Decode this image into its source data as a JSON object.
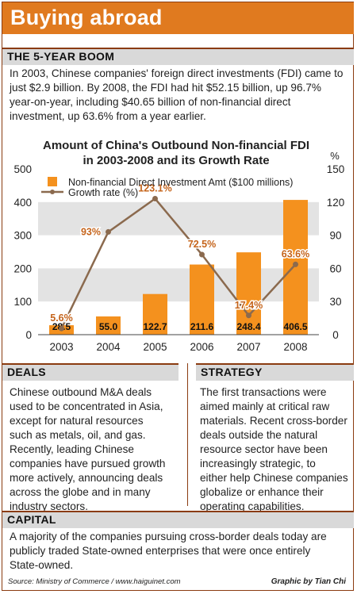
{
  "title": "Buying abroad",
  "boom": {
    "heading": "THE 5-YEAR BOOM",
    "lines": [
      "In 2003, Chinese companies' foreign direct investments (FDI) came to",
      "just $2.9 billion. By 2008, the FDI had hit $52.15 billion, up 96.7%",
      "year-on-year, including $40.65 billion of non-financial direct",
      "investment, up 63.6% from a year earlier."
    ]
  },
  "chart_data": {
    "type": "bar",
    "title_lines": [
      "Amount of China's Outbound Non-financial FDI",
      "in 2003-2008 and its Growth Rate"
    ],
    "categories": [
      "2003",
      "2004",
      "2005",
      "2006",
      "2007",
      "2008"
    ],
    "series": [
      {
        "name": "Non-financial Direct Investment Amt ($100 millions)",
        "type": "bar",
        "axis": "left",
        "values": [
          28.5,
          55.0,
          122.7,
          211.6,
          248.4,
          406.5
        ],
        "labels": [
          "28.5",
          "55.0",
          "122.7",
          "211.6",
          "248.4",
          "406.5"
        ]
      },
      {
        "name": "Growth rate (%)",
        "type": "line",
        "axis": "right",
        "values": [
          5.6,
          93,
          123.1,
          72.5,
          17.4,
          63.6
        ],
        "labels": [
          "5.6%",
          "93%",
          "123.1%",
          "72.5%",
          "17.4%",
          "63.6%"
        ]
      }
    ],
    "y_left": {
      "min": 0,
      "max": 500,
      "ticks": [
        0,
        100,
        200,
        300,
        400,
        500
      ]
    },
    "y_right": {
      "min": 0,
      "max": 150,
      "ticks": [
        0,
        30,
        60,
        90,
        120,
        150
      ],
      "unit": "%"
    },
    "grid": "alternating bands",
    "legend": "top-left",
    "colors": {
      "bar": "#f4911e",
      "line": "#8b6a4e",
      "band": "#e3e3e3",
      "label": "#c5641b"
    }
  },
  "deals": {
    "heading": "DEALS",
    "lines": [
      "Chinese outbound M&A deals",
      "used to be concentrated in Asia,",
      "except for natural resources",
      "such as metals, oil, and gas.",
      "Recently, leading Chinese",
      "companies have pursued growth",
      "more actively, announcing deals",
      "across the globe and in many",
      "industry sectors."
    ]
  },
  "strategy": {
    "heading": "STRATEGY",
    "lines": [
      "The first transactions were",
      "aimed mainly at critical raw",
      "materials. Recent cross-border",
      "deals outside the natural",
      "resource sector have been",
      "increasingly strategic, to",
      "either help Chinese companies",
      "globalize or enhance their",
      "operating capabilities."
    ]
  },
  "capital": {
    "heading": "CAPITAL",
    "lines": [
      "A majority of the companies pursuing cross-border deals today are",
      "publicly traded State-owned enterprises that were once entirely",
      "State-owned."
    ]
  },
  "source": "Source: Ministry of Commerce / www.haiguinet.com",
  "credit": "Graphic by Tian Chi",
  "colors": {
    "banner": "#e07a1f",
    "section": "#d9d9d9",
    "border": "#8a3b10"
  }
}
